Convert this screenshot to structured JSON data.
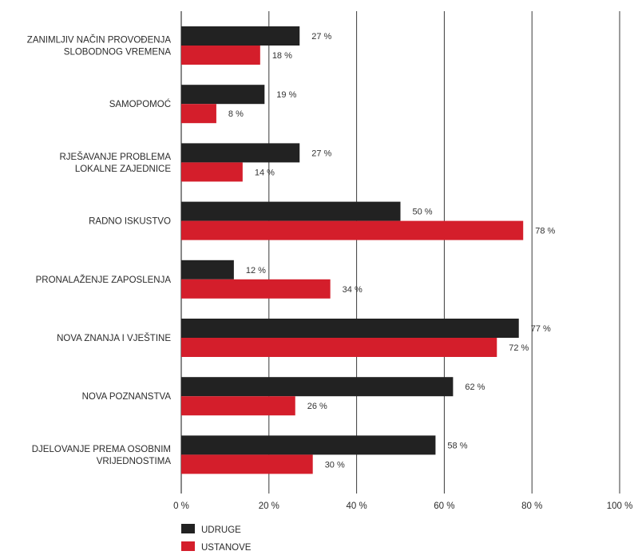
{
  "chart_data": {
    "type": "bar",
    "orientation": "horizontal",
    "categories": [
      [
        "ZANIMLJIV NAČIN PROVOĐENJA",
        "SLOBODNOG VREMENA"
      ],
      [
        "SAMOPOMOĆ"
      ],
      [
        "RJEŠAVANJE PROBLEMA",
        "LOKALNE ZAJEDNICE"
      ],
      [
        "RADNO ISKUSTVO"
      ],
      [
        "PRONALAŽENJE ZAPOSLENJA"
      ],
      [
        "NOVA ZNANJA I VJEŠTINE"
      ],
      [
        "NOVA POZNANSTVA"
      ],
      [
        "DJELOVANJE PREMA OSOBNIM",
        "VRIJEDNOSTIMA"
      ]
    ],
    "series": [
      {
        "name": "UDRUGE",
        "color": "#222222",
        "values": [
          27,
          19,
          27,
          50,
          12,
          77,
          62,
          58
        ],
        "labels": [
          "27 %",
          "19 %",
          "27 %",
          "50 %",
          "12 %",
          "77 %",
          "62 %",
          "58 %"
        ]
      },
      {
        "name": "USTANOVE",
        "color": "#d41e2b",
        "values": [
          18,
          8,
          14,
          78,
          34,
          72,
          26,
          30
        ],
        "labels": [
          "18 %",
          "8 %",
          "14 %",
          "78 %",
          "34 %",
          "72 %",
          "26 %",
          "30 %"
        ]
      }
    ],
    "xlim": [
      0,
      100
    ],
    "xticks": [
      0,
      20,
      40,
      60,
      80,
      100
    ],
    "xtick_labels": [
      "0 %",
      "20 %",
      "40 %",
      "60 %",
      "80 %",
      "100 %"
    ],
    "grid": "vertical",
    "legend_placement": "bottom-left",
    "title": "",
    "xlabel": "",
    "ylabel": ""
  }
}
